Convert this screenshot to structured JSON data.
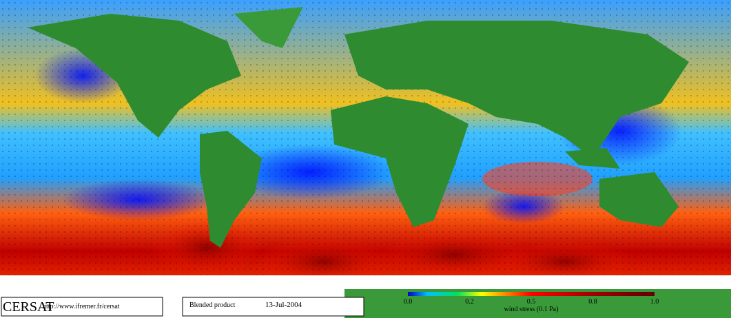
{
  "footer": {
    "logo": "CERSAT",
    "url": "http://www.ifremer.fr/cersat",
    "product": "Blended product",
    "date": "13-Jul-2004"
  },
  "colorbar": {
    "ticks": [
      "0.0",
      "0.2",
      "0.5",
      "0.8",
      "1.0"
    ],
    "label": "wind stress (0.1 Pa)"
  }
}
